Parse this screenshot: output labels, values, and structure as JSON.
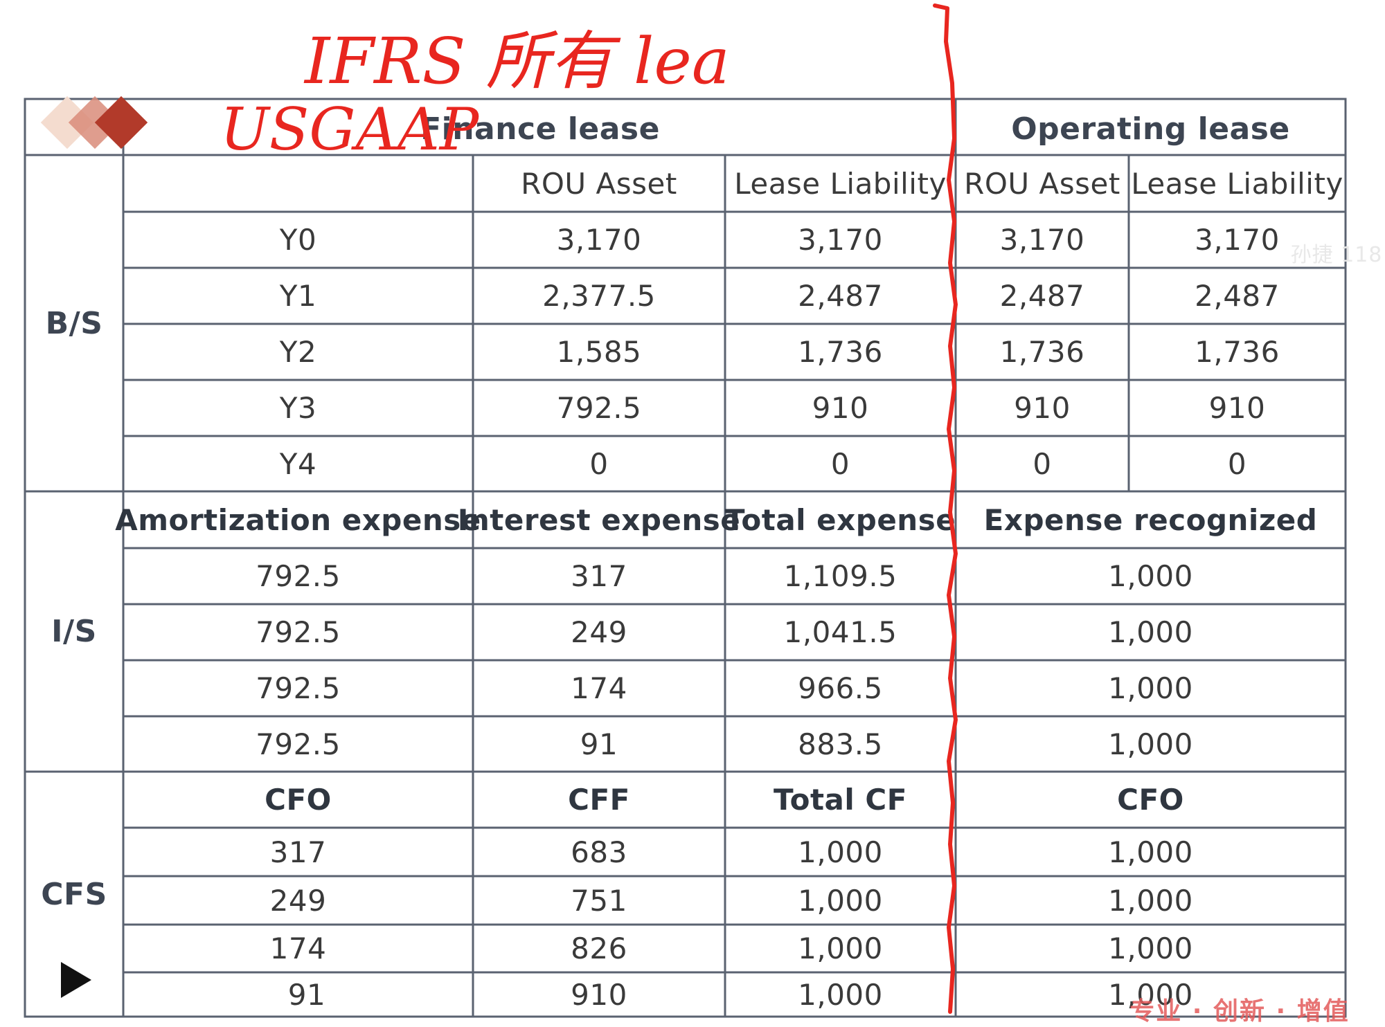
{
  "colors": {
    "grid_line": "#5a6270",
    "ink_red": "#e8261f",
    "logo_light": "#f4dccf",
    "logo_mid": "#d98c7a",
    "logo_dark": "#b23a2a",
    "brand_red": "#e35b5b"
  },
  "icons": {
    "play": "play-icon",
    "logo": "diamond-logo-icon"
  },
  "handwriting": {
    "line1": "IFRS 所有 lea",
    "line2": "USGAAP"
  },
  "table": {
    "finance_lease_header": "Finance lease",
    "operating_lease_header": "Operating lease",
    "bs": {
      "label": "B/S",
      "columns": [
        "ROU Asset",
        "Lease Liability",
        "ROU Asset",
        "Lease Liability"
      ],
      "rows": [
        {
          "year": "Y0",
          "fin_rou": "3,170",
          "fin_liab": "3,170",
          "op_rou": "3,170",
          "op_liab": "3,170"
        },
        {
          "year": "Y1",
          "fin_rou": "2,377.5",
          "fin_liab": "2,487",
          "op_rou": "2,487",
          "op_liab": "2,487"
        },
        {
          "year": "Y2",
          "fin_rou": "1,585",
          "fin_liab": "1,736",
          "op_rou": "1,736",
          "op_liab": "1,736"
        },
        {
          "year": "Y3",
          "fin_rou": "792.5",
          "fin_liab": "910",
          "op_rou": "910",
          "op_liab": "910"
        },
        {
          "year": "Y4",
          "fin_rou": "0",
          "fin_liab": "0",
          "op_rou": "0",
          "op_liab": "0"
        }
      ]
    },
    "is": {
      "label": "I/S",
      "columns": [
        "Amortization expense",
        "Interest expense",
        "Total expense",
        "Expense recognized"
      ],
      "rows": [
        {
          "amort": "792.5",
          "interest": "317",
          "total": "1,109.5",
          "recognized": "1,000"
        },
        {
          "amort": "792.5",
          "interest": "249",
          "total": "1,041.5",
          "recognized": "1,000"
        },
        {
          "amort": "792.5",
          "interest": "174",
          "total": "966.5",
          "recognized": "1,000"
        },
        {
          "amort": "792.5",
          "interest": "91",
          "total": "883.5",
          "recognized": "1,000"
        }
      ]
    },
    "cfs": {
      "label": "CFS",
      "columns": [
        "CFO",
        "CFF",
        "Total CF",
        "CFO"
      ],
      "rows": [
        {
          "cfo": "317",
          "cff": "683",
          "total": "1,000",
          "op_cfo": "1,000"
        },
        {
          "cfo": "249",
          "cff": "751",
          "total": "1,000",
          "op_cfo": "1,000"
        },
        {
          "cfo": "174",
          "cff": "826",
          "total": "1,000",
          "op_cfo": "1,000"
        },
        {
          "cfo": "91",
          "cff": "910",
          "total": "1,000",
          "op_cfo": "1,000"
        }
      ]
    }
  },
  "watermark": {
    "text": "孙捷 118"
  },
  "brand": {
    "slogan": "专业 · 创新 · 增值"
  }
}
